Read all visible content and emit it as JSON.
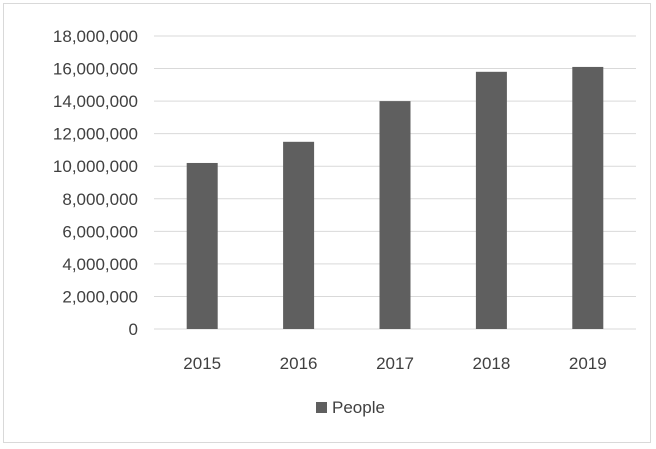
{
  "chart_data": {
    "type": "bar",
    "title": "",
    "xlabel": "",
    "ylabel": "",
    "categories": [
      "2015",
      "2016",
      "2017",
      "2018",
      "2019"
    ],
    "series": [
      {
        "name": "People",
        "values": [
          10200000,
          11500000,
          14000000,
          15800000,
          16100000
        ]
      }
    ],
    "ylim": [
      0,
      18000000
    ],
    "yticks": [
      0,
      2000000,
      4000000,
      6000000,
      8000000,
      10000000,
      12000000,
      14000000,
      16000000,
      18000000
    ],
    "ytick_labels": [
      "0",
      "2,000,000",
      "4,000,000",
      "6,000,000",
      "8,000,000",
      "10,000,000",
      "12,000,000",
      "14,000,000",
      "16,000,000",
      "18,000,000"
    ],
    "grid": true,
    "legend_position": "bottom",
    "colors": {
      "bar": "#5f5f5f",
      "grid": "#d9d9d9",
      "text": "#404040"
    }
  }
}
